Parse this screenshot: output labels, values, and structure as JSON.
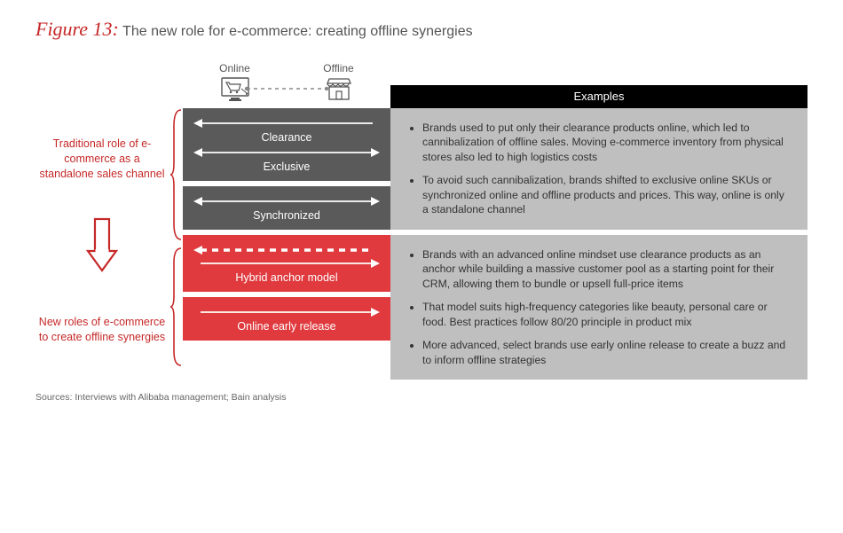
{
  "figure": {
    "number": "Figure 13:",
    "title": "The new role for e-commerce: creating offline synergies"
  },
  "colors": {
    "accent_red": "#c62828",
    "block_gray": "#5a5a5a",
    "block_red": "#e03a3e",
    "examples_bg": "#bfbfbf",
    "header_black": "#000000",
    "white": "#ffffff"
  },
  "headers": {
    "online": "Online",
    "offline": "Offline",
    "examples": "Examples"
  },
  "left": {
    "traditional": "Traditional role of e-commerce as a standalone sales channel",
    "new_roles": "New roles of e-commerce to create offline synergies"
  },
  "blocks": {
    "traditional": [
      {
        "rows": [
          {
            "label": "Clearance",
            "direction": "left",
            "style": "solid"
          },
          {
            "label": "Exclusive",
            "direction": "both",
            "style": "solid"
          }
        ]
      },
      {
        "rows": [
          {
            "label": "Synchronized",
            "direction": "both",
            "style": "solid"
          }
        ]
      }
    ],
    "new": [
      {
        "rows": [
          {
            "label": "",
            "direction": "left",
            "style": "dashed"
          },
          {
            "label": "Hybrid anchor model",
            "direction": "right",
            "style": "solid"
          }
        ]
      },
      {
        "rows": [
          {
            "label": "Online early release",
            "direction": "right",
            "style": "solid"
          }
        ]
      }
    ]
  },
  "examples": {
    "traditional": [
      "Brands used to put only their clearance products online, which led to cannibalization of offline sales. Moving e-commerce inventory from physical stores also led to high logistics costs",
      "To avoid such cannibalization, brands shifted to exclusive online SKUs or synchronized online and offline products and prices. This way, online is only a standalone channel"
    ],
    "new": [
      "Brands with an advanced online mindset use clearance products as an anchor while building a massive customer pool as a starting point for their CRM, allowing them to bundle or upsell full-price items",
      "That model suits high-frequency categories like beauty, personal care or food. Best practices follow 80/20 principle in product mix",
      "More advanced, select brands use early online release to create a buzz and to inform offline strategies"
    ]
  },
  "sources": "Sources: Interviews with Alibaba management; Bain analysis"
}
